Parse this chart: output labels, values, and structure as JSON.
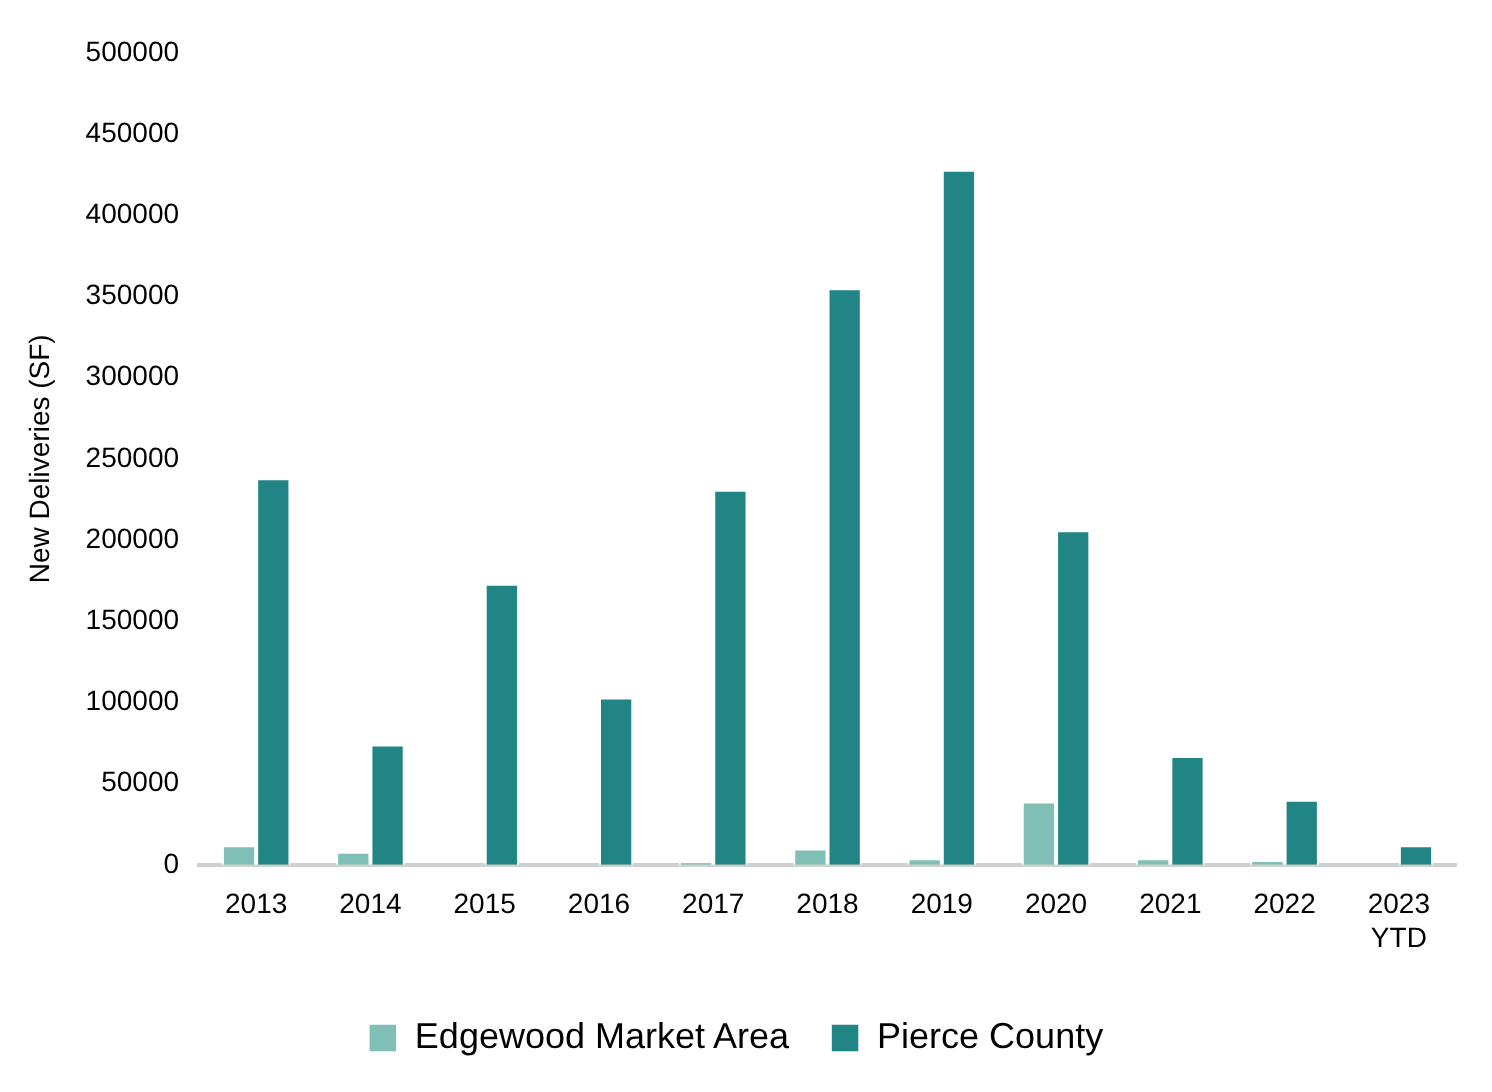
{
  "chart_data": {
    "type": "bar",
    "ylabel": "New Deliveries (SF)",
    "categories": [
      "2013",
      "2014",
      "2015",
      "2016",
      "2017",
      "2018",
      "2019",
      "2020",
      "2021",
      "2022",
      "2023\nYTD"
    ],
    "series": [
      {
        "name": "Edgewood Market Area",
        "color": "#7fbfb5",
        "values": [
          12000,
          8000,
          0,
          0,
          2000,
          10000,
          4000,
          39000,
          4000,
          3000,
          0
        ]
      },
      {
        "name": "Pierce County",
        "color": "#218585",
        "values": [
          238000,
          74000,
          173000,
          103000,
          231000,
          355000,
          428000,
          206000,
          67000,
          40000,
          12000
        ]
      }
    ],
    "ylim": [
      0,
      500000
    ],
    "yticks": [
      0,
      50000,
      100000,
      150000,
      200000,
      250000,
      300000,
      350000,
      400000,
      450000,
      500000
    ],
    "grid": false,
    "legend": "bottom"
  }
}
